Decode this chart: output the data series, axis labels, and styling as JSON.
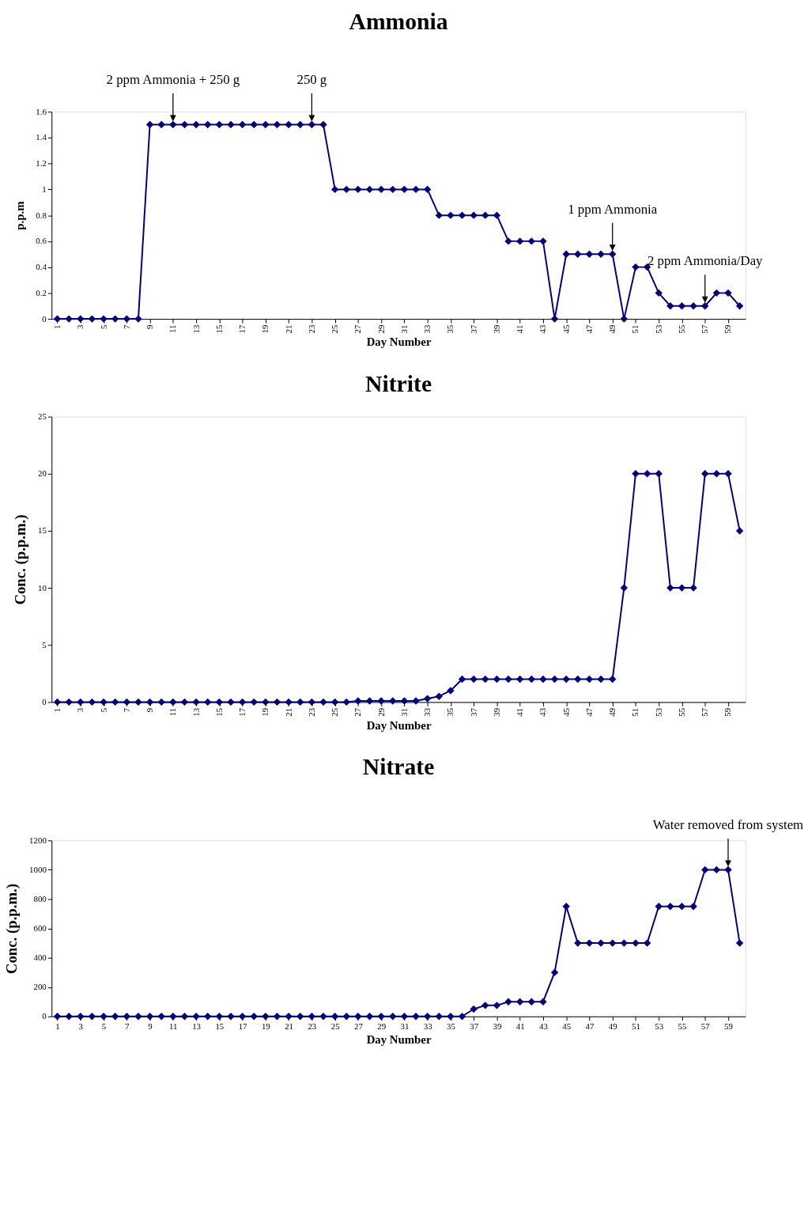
{
  "chart_data": [
    {
      "type": "line",
      "title": "Ammonia",
      "xlabel": "Day Number",
      "ylabel": "p.p.m",
      "marker": "diamond",
      "categories": [
        "1",
        null,
        "3",
        null,
        "5",
        null,
        "7",
        null,
        "9",
        null,
        "11",
        null,
        "13",
        null,
        "15",
        null,
        "17",
        null,
        "19",
        null,
        "21",
        null,
        "23",
        null,
        "25",
        null,
        "27",
        null,
        "29",
        null,
        "31",
        null,
        "33",
        null,
        "35",
        null,
        "37",
        null,
        "39",
        null,
        "41",
        null,
        "43",
        null,
        "45",
        null,
        "47",
        null,
        "49",
        null,
        "51",
        null,
        "53",
        null,
        "55",
        null,
        "57",
        null,
        "59",
        null
      ],
      "series": [
        {
          "color": "#000080",
          "values": [
            0,
            0,
            0,
            0,
            0,
            0,
            0,
            0,
            1.5,
            1.5,
            1.5,
            1.5,
            1.5,
            1.5,
            1.5,
            1.5,
            1.5,
            1.5,
            1.5,
            1.5,
            1.5,
            1.5,
            1.5,
            1.5,
            1,
            1,
            1,
            1,
            1,
            1,
            1,
            1,
            1,
            0.8,
            0.8,
            0.8,
            0.8,
            0.8,
            0.8,
            0.6,
            0.6,
            0.6,
            0.6,
            0,
            0.5,
            0.5,
            0.5,
            0.5,
            0.5,
            0,
            0.4,
            0.4,
            0.2,
            0.1,
            0.1,
            0.1,
            0.1,
            0.2,
            0.2,
            0.1
          ]
        }
      ],
      "ylim": [
        0,
        1.6
      ],
      "yticks": [
        0,
        0.2,
        0.4,
        0.6,
        0.8,
        1,
        1.2,
        1.4,
        1.6
      ],
      "annotations": [
        {
          "text": "2 ppm Ammonia + 250 g",
          "x": "11",
          "y": 1.5
        },
        {
          "text": "250 g",
          "x": "23",
          "y": 1.5
        },
        {
          "text": "1 ppm Ammonia",
          "x": "49",
          "y": 0.5
        },
        {
          "text": "2 ppm Ammonia/Day",
          "x": "57",
          "y": 0.1
        }
      ]
    },
    {
      "type": "line",
      "title": "Nitrite",
      "xlabel": "Day Number",
      "ylabel": "Conc. (p.p.m.)",
      "marker": "diamond",
      "categories": [
        "1",
        null,
        "3",
        null,
        "5",
        null,
        "7",
        null,
        "9",
        null,
        "11",
        null,
        "13",
        null,
        "15",
        null,
        "17",
        null,
        "19",
        null,
        "21",
        null,
        "23",
        null,
        "25",
        null,
        "27",
        null,
        "29",
        null,
        "31",
        null,
        "33",
        null,
        "35",
        null,
        "37",
        null,
        "39",
        null,
        "41",
        null,
        "43",
        null,
        "45",
        null,
        "47",
        null,
        "49",
        null,
        "51",
        null,
        "53",
        null,
        "55",
        null,
        "57",
        null,
        "59",
        null
      ],
      "series": [
        {
          "color": "#000080",
          "values": [
            0,
            0,
            0,
            0,
            0,
            0,
            0,
            0,
            0,
            0,
            0,
            0,
            0,
            0,
            0,
            0,
            0,
            0,
            0,
            0,
            0,
            0,
            0,
            0,
            0,
            0,
            0.1,
            0.1,
            0.1,
            0.1,
            0.1,
            0.1,
            0.3,
            0.5,
            1,
            2,
            2,
            2,
            2,
            2,
            2,
            2,
            2,
            2,
            2,
            2,
            2,
            2,
            2,
            10,
            20,
            20,
            20,
            10,
            10,
            10,
            20,
            20,
            20,
            15
          ]
        }
      ],
      "ylim": [
        0,
        25
      ],
      "yticks": [
        0,
        5,
        10,
        15,
        20,
        25
      ]
    },
    {
      "type": "line",
      "title": "Nitrate",
      "xlabel": "Day Number",
      "ylabel": "Conc. (p.p.m.)",
      "marker": "diamond",
      "categories": [
        "1",
        null,
        "3",
        null,
        "5",
        null,
        "7",
        null,
        "9",
        null,
        "11",
        null,
        "13",
        null,
        "15",
        null,
        "17",
        null,
        "19",
        null,
        "21",
        null,
        "23",
        null,
        "25",
        null,
        "27",
        null,
        "29",
        null,
        "31",
        null,
        "33",
        null,
        "35",
        null,
        "37",
        null,
        "39",
        null,
        "41",
        null,
        "43",
        null,
        "45",
        null,
        "47",
        null,
        "49",
        null,
        "51",
        null,
        "53",
        null,
        "55",
        null,
        "57",
        null,
        "59",
        null
      ],
      "series": [
        {
          "color": "#000080",
          "values": [
            0,
            0,
            0,
            0,
            0,
            0,
            0,
            0,
            0,
            0,
            0,
            0,
            0,
            0,
            0,
            0,
            0,
            0,
            0,
            0,
            0,
            0,
            0,
            0,
            0,
            0,
            0,
            0,
            0,
            0,
            0,
            0,
            0,
            0,
            0,
            0,
            50,
            75,
            75,
            100,
            100,
            100,
            100,
            300,
            750,
            500,
            500,
            500,
            500,
            500,
            500,
            500,
            750,
            750,
            750,
            750,
            1000,
            1000,
            1000,
            500
          ]
        }
      ],
      "ylim": [
        0,
        1200
      ],
      "yticks": [
        0,
        200,
        400,
        600,
        800,
        1000,
        1200
      ],
      "annotations": [
        {
          "text": "Water removed from system",
          "x": "59",
          "y": 1000
        }
      ]
    }
  ]
}
